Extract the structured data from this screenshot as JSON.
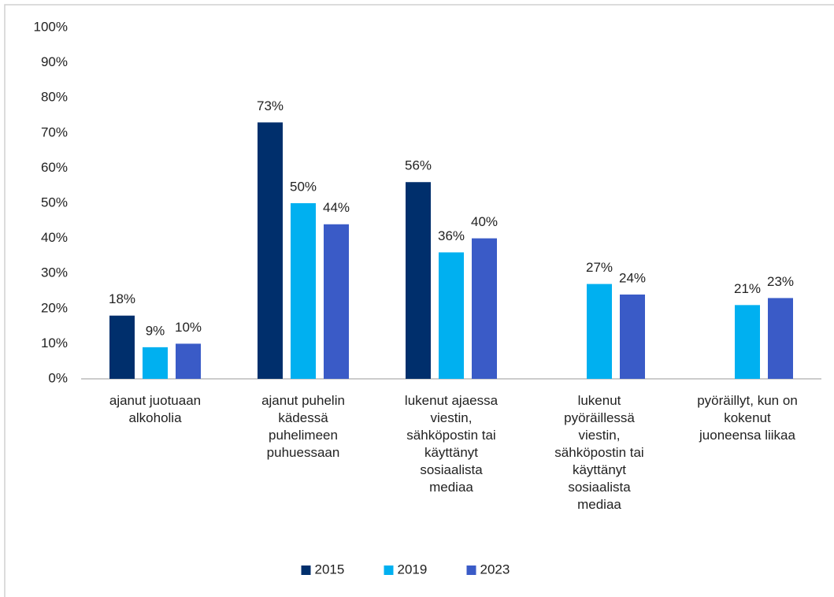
{
  "chart_data": {
    "type": "bar",
    "categories": [
      "ajanut juotuaan\nalkoholia",
      "ajanut puhelin\nkädessä\npuhelimeen\npuhuessaan",
      "lukenut ajaessa\nviestin,\nsähköpostin tai\nkäyttänyt\nsosiaalista\nmediaa",
      "lukenut\npyöräillessä\nviestin,\nsähköpostin tai\nkäyttänyt\nsosiaalista\nmediaa",
      "pyöräillyt, kun on\nkokenut\njuoneensa liikaa"
    ],
    "series": [
      {
        "name": "2015",
        "color": "#002f6c",
        "values": [
          18,
          73,
          56,
          null,
          null
        ],
        "value_labels": [
          "18%",
          "73%",
          "56%",
          null,
          null
        ]
      },
      {
        "name": "2019",
        "color": "#00b0f0",
        "values": [
          9,
          50,
          36,
          27,
          21
        ],
        "value_labels": [
          "9%",
          "50%",
          "36%",
          "27%",
          "21%"
        ]
      },
      {
        "name": "2023",
        "color": "#3a5bc7",
        "values": [
          10,
          44,
          40,
          24,
          23
        ],
        "value_labels": [
          "10%",
          "44%",
          "40%",
          "24%",
          "23%"
        ]
      }
    ],
    "ylim": [
      0,
      100
    ],
    "yticks": [
      {
        "value": 0,
        "label": "0%"
      },
      {
        "value": 10,
        "label": "10%"
      },
      {
        "value": 20,
        "label": "20%"
      },
      {
        "value": 30,
        "label": "30%"
      },
      {
        "value": 40,
        "label": "40%"
      },
      {
        "value": 50,
        "label": "50%"
      },
      {
        "value": 60,
        "label": "60%"
      },
      {
        "value": 70,
        "label": "70%"
      },
      {
        "value": 80,
        "label": "80%"
      },
      {
        "value": 90,
        "label": "90%"
      },
      {
        "value": 100,
        "label": "100%"
      }
    ],
    "grid": false,
    "legend": "bottom"
  }
}
